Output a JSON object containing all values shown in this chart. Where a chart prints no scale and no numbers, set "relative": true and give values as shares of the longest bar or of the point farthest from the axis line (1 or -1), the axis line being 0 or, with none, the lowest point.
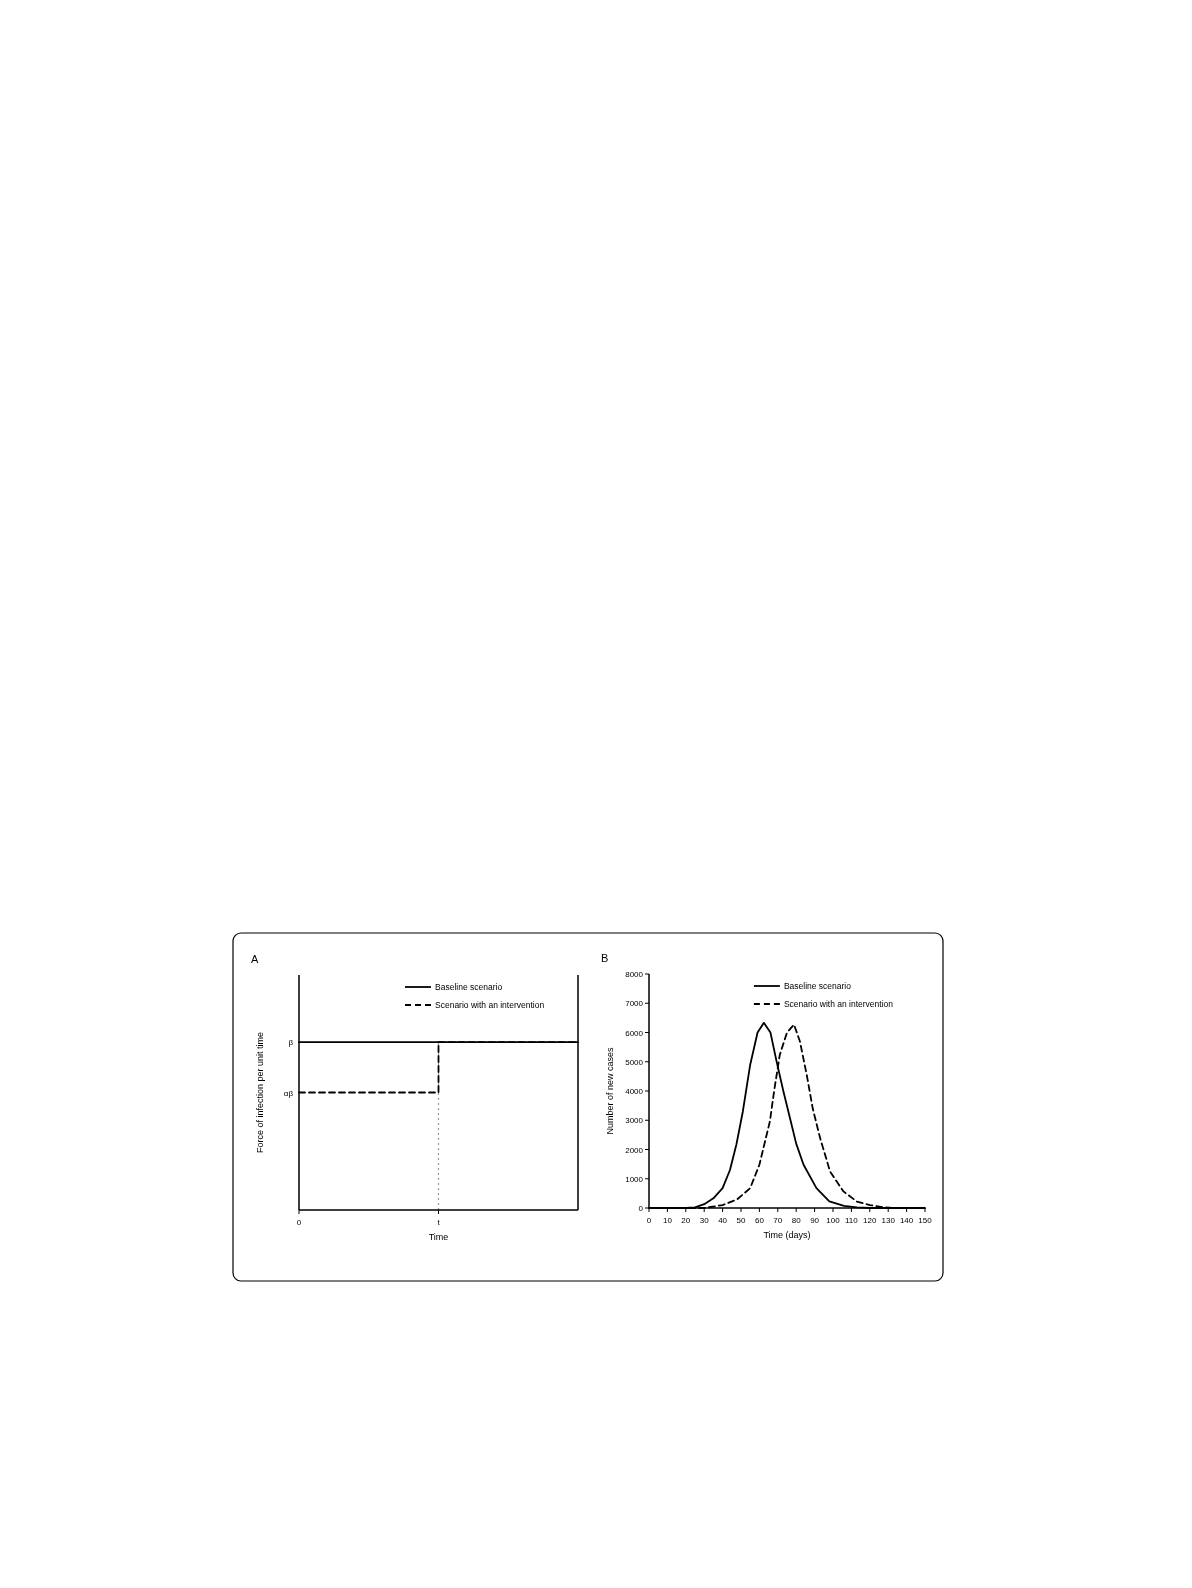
{
  "chart_data": [
    {
      "type": "step",
      "title": "A",
      "xlabel": "Time",
      "ylabel": "Force of infection per unit time",
      "relative": true,
      "categories": [
        "0",
        null,
        "t",
        null,
        null
      ],
      "legend": "top right",
      "grid": false,
      "series": [
        {
          "name": "Baseline scenario",
          "color": "#000000",
          "line_style": "solid",
          "values": [
            1,
            1,
            1,
            1,
            1
          ]
        },
        {
          "name": "Scenario with an intervention",
          "color": "#000000",
          "line_style": "dashed",
          "values": [
            0.7,
            0.7,
            1,
            1,
            1
          ]
        }
      ],
      "annotations": [
        "β",
        "αβ"
      ],
      "ref_lines": [
        {
          "axis": "x",
          "value": "t",
          "color": "#999999",
          "line_style": "dotted"
        }
      ]
    },
    {
      "type": "line",
      "title": "B",
      "xlabel": "Time (days)",
      "ylabel": "Number of new cases",
      "xlim": [
        0,
        150
      ],
      "ylim": [
        0,
        8000
      ],
      "xticks": [
        0,
        10,
        20,
        30,
        40,
        50,
        60,
        70,
        80,
        90,
        100,
        110,
        120,
        130,
        140,
        150
      ],
      "yticks": [
        0,
        1000,
        2000,
        3000,
        4000,
        5000,
        6000,
        7000,
        8000
      ],
      "legend": "top right",
      "grid": false,
      "series": [
        {
          "name": "Baseline scenario",
          "color": "#000000",
          "line_style": "solid",
          "x": [
            0,
            20,
            25,
            30,
            35,
            40,
            44,
            47.5,
            51,
            55,
            59,
            62.4,
            66,
            69.3,
            73,
            76.6,
            80,
            84,
            91,
            98,
            106,
            113,
            120,
            150
          ],
          "values": [
            0,
            0,
            20,
            130,
            330,
            680,
            1300,
            2170,
            3300,
            4900,
            6000,
            6330,
            6000,
            5020,
            4000,
            3080,
            2200,
            1480,
            680,
            230,
            70,
            20,
            0,
            0
          ]
        },
        {
          "name": "Scenario with an intervention",
          "color": "#000000",
          "line_style": "dashed",
          "x": [
            0,
            30,
            40,
            48,
            55,
            60,
            65.7,
            68,
            71.1,
            75,
            78.8,
            82,
            85.7,
            89,
            93,
            98.4,
            105.6,
            113,
            120,
            127,
            133,
            150
          ],
          "values": [
            0,
            0,
            100,
            300,
            680,
            1480,
            2960,
            4000,
            5240,
            6000,
            6270,
            5700,
            4560,
            3400,
            2390,
            1250,
            570,
            220,
            100,
            30,
            0,
            0
          ]
        }
      ]
    }
  ]
}
